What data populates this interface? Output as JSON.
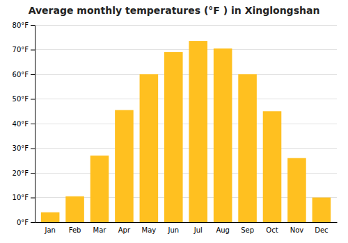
{
  "chart_data": {
    "type": "bar",
    "title": "Average monthly temperatures (°F ) in Xinglongshan",
    "categories": [
      "Jan",
      "Feb",
      "Mar",
      "Apr",
      "May",
      "Jun",
      "Jul",
      "Aug",
      "Sep",
      "Oct",
      "Nov",
      "Dec"
    ],
    "values": [
      4,
      10.5,
      27,
      45.5,
      60,
      69,
      73.5,
      70.5,
      60,
      45,
      26,
      10
    ],
    "color": "#FFC020",
    "ylim": [
      0,
      80
    ],
    "yticks": [
      {
        "value": 0,
        "label": "0°F"
      },
      {
        "value": 10,
        "label": "10°F"
      },
      {
        "value": 20,
        "label": "20°F"
      },
      {
        "value": 30,
        "label": "30°F"
      },
      {
        "value": 40,
        "label": "40°F"
      },
      {
        "value": 50,
        "label": "50°F"
      },
      {
        "value": 60,
        "label": "60°F"
      },
      {
        "value": 70,
        "label": "70°F"
      },
      {
        "value": 80,
        "label": "80°F"
      }
    ],
    "grid": true
  }
}
